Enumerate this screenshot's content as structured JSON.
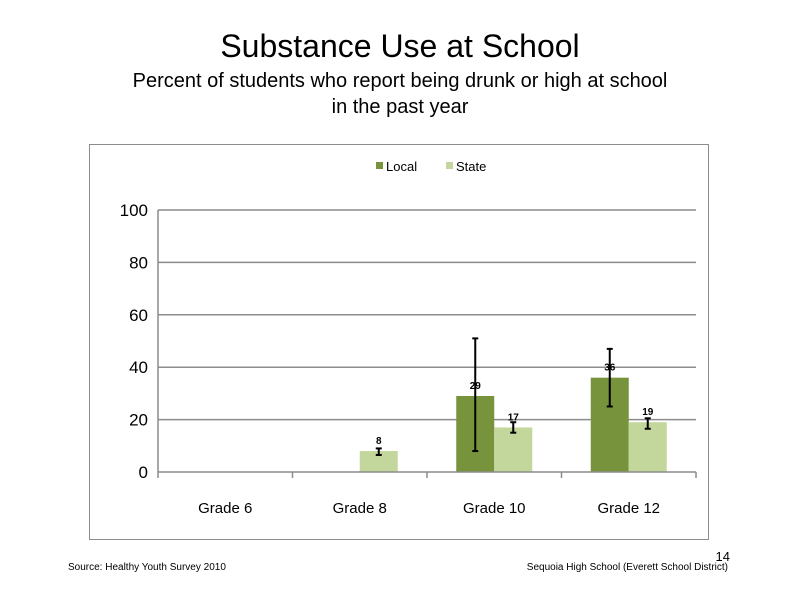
{
  "slide": {
    "title": "Substance Use at School",
    "subtitle_line1": "Percent of students who report being drunk or high at school",
    "subtitle_line2": "in the past year",
    "source": "Source: Healthy Youth Survey 2010",
    "school": "Sequoia High School (Everett School District)",
    "page_number": "14"
  },
  "chart_data": {
    "type": "bar",
    "title": "",
    "xlabel": "",
    "ylabel": "",
    "categories": [
      "Grade 6",
      "Grade 8",
      "Grade 10",
      "Grade 12"
    ],
    "ylim": [
      0,
      100
    ],
    "yticks": [
      0,
      20,
      40,
      60,
      80,
      100
    ],
    "grid": true,
    "legend": "top",
    "series": [
      {
        "name": "Local",
        "color": "#77933c",
        "values": [
          null,
          null,
          29,
          36
        ],
        "labels": [
          "",
          "",
          "29",
          "36"
        ],
        "error_low": [
          null,
          null,
          8,
          25
        ],
        "error_high": [
          null,
          null,
          51,
          47
        ]
      },
      {
        "name": "State",
        "color": "#c3d69b",
        "values": [
          null,
          8,
          17,
          19
        ],
        "labels": [
          "",
          "8",
          "17",
          "19"
        ],
        "error_low": [
          null,
          6.5,
          15,
          16.5
        ],
        "error_high": [
          null,
          9,
          19,
          20.5
        ]
      }
    ]
  }
}
